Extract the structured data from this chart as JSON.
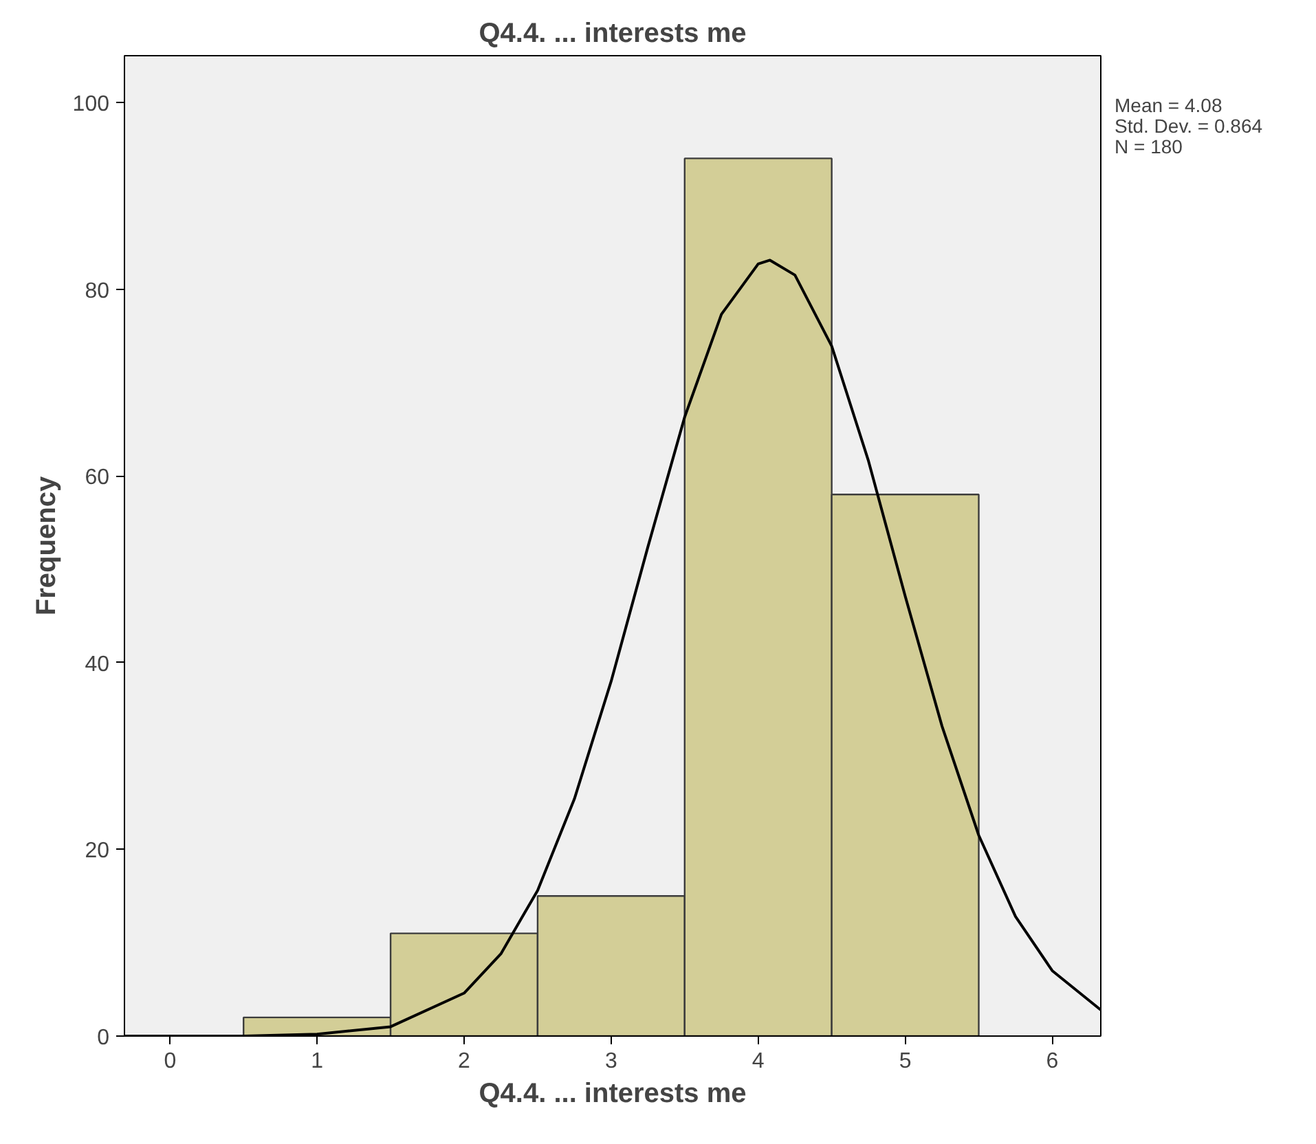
{
  "chart_data": {
    "type": "histogram",
    "title": "Q4.4. ... interests me",
    "xlabel": "Q4.4. ... interests me",
    "ylabel": "Frequency",
    "series": [
      {
        "bins": [
          0.5,
          1.5,
          2.5,
          3.5,
          4.5,
          5.5
        ],
        "values": [
          2,
          11,
          15,
          94,
          58
        ],
        "color": "#d3ce97"
      },
      {
        "type": "line",
        "color": "#000000",
        "x": [
          -0.31,
          0.5,
          1,
          1.5,
          2,
          2.25,
          2.5,
          2.75,
          3,
          3.25,
          3.5,
          3.75,
          4,
          4.08,
          4.25,
          4.5,
          4.75,
          5,
          5.25,
          5.5,
          5.75,
          6,
          6.33
        ],
        "values": [
          0,
          0,
          0.2,
          1.0,
          4.6,
          8.8,
          15.6,
          25.4,
          38.0,
          52.4,
          66.3,
          77.3,
          82.7,
          83.1,
          81.5,
          73.9,
          61.6,
          47.1,
          33.2,
          21.5,
          12.8,
          7.0,
          2.8
        ]
      }
    ],
    "xlim": [
      -0.31,
      6.33
    ],
    "ylim": [
      0,
      105
    ],
    "xticks": [
      0,
      1,
      2,
      3,
      4,
      5,
      6
    ],
    "yticks": [
      0,
      20,
      40,
      60,
      80,
      100
    ],
    "grid": false,
    "annotations": [
      "Mean = 4.08",
      "Std. Dev. = 0.864",
      "N = 180"
    ]
  }
}
